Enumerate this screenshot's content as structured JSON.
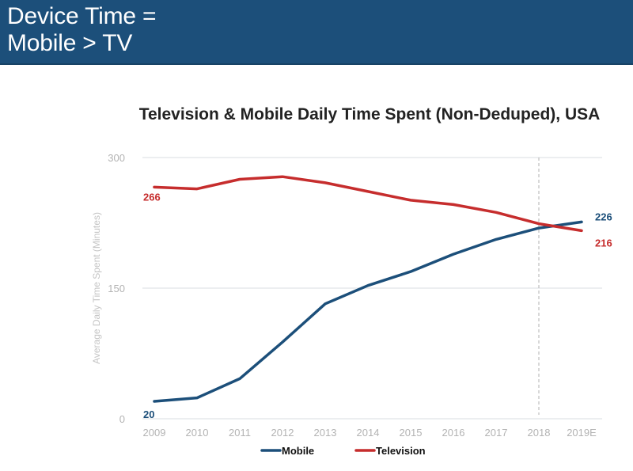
{
  "header": {
    "title": "Device Time =\nMobile > TV",
    "background": "#1c4f7a"
  },
  "chart_data": {
    "type": "line",
    "title": "Television & Mobile Daily Time Spent (Non-Deduped), USA",
    "xlabel": "",
    "ylabel": "Average Daily Time Spent (Minutes)",
    "ylim": [
      0,
      300
    ],
    "yticks": [
      0,
      150,
      300
    ],
    "grid": true,
    "legend_position": "bottom-center",
    "categories": [
      "2009",
      "2010",
      "2011",
      "2012",
      "2013",
      "2014",
      "2015",
      "2016",
      "2017",
      "2018",
      "2019E"
    ],
    "reference_line": {
      "at": "2018",
      "style": "dashed"
    },
    "series": [
      {
        "name": "Mobile",
        "color": "#1c4f7a",
        "values": [
          20,
          24,
          46,
          88,
          132,
          153,
          169,
          189,
          206,
          219,
          226
        ],
        "labels": {
          "first": "20",
          "last": "226"
        }
      },
      {
        "name": "Television",
        "color": "#c62d2d",
        "values": [
          266,
          264,
          275,
          278,
          271,
          261,
          251,
          246,
          237,
          224,
          216
        ],
        "labels": {
          "first": "266",
          "last": "216"
        }
      }
    ]
  }
}
